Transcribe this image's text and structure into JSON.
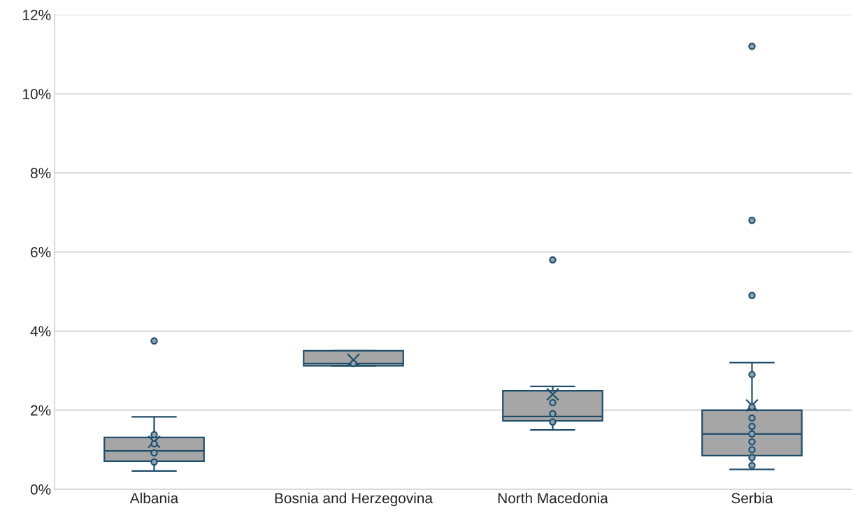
{
  "chart_data": {
    "type": "box",
    "categories": [
      "Albania",
      "Bosnia and Herzegovina",
      "North Macedonia",
      "Serbia"
    ],
    "color": "#a6a6a6",
    "boxes": [
      {
        "low": 0.46,
        "q1": 0.71,
        "median": 0.97,
        "q3": 1.31,
        "high": 1.83,
        "mean": 1.2,
        "outliers": [
          3.75
        ]
      },
      {
        "low": 3.12,
        "q1": 3.12,
        "median": 3.18,
        "q3": 3.5,
        "high": 3.5,
        "mean": 3.27
      },
      {
        "low": 1.5,
        "q1": 1.73,
        "median": 1.84,
        "q3": 2.49,
        "high": 2.6,
        "mean": 2.4,
        "outliers": [
          5.8
        ]
      },
      {
        "low": 0.5,
        "q1": 0.85,
        "median": 1.4,
        "q3": 2.0,
        "high": 3.2,
        "mean": 2.12,
        "outliers": [
          4.9,
          6.8,
          11.2
        ]
      }
    ],
    "series": [
      {
        "type": "scatter",
        "color": "#8fa3b3",
        "x": [
          "Albania",
          "Albania",
          "Albania",
          "Albania",
          "Bosnia and Herzegovina",
          "North Macedonia",
          "North Macedonia",
          "North Macedonia",
          "Serbia",
          "Serbia",
          "Serbia",
          "Serbia",
          "Serbia",
          "Serbia",
          "Serbia",
          "Serbia",
          "Serbia"
        ],
        "values": [
          1.38,
          1.15,
          0.92,
          0.69,
          3.18,
          2.19,
          1.91,
          1.7,
          2.9,
          2.08,
          1.8,
          1.59,
          1.4,
          1.2,
          1.0,
          0.8,
          0.6
        ]
      }
    ],
    "ylim": [
      0,
      12
    ],
    "yticks": [
      {
        "value": 0,
        "label": "0%"
      },
      {
        "value": 2,
        "label": "2%"
      },
      {
        "value": 4,
        "label": "4%"
      },
      {
        "value": 6,
        "label": "6%"
      },
      {
        "value": 8,
        "label": "8%"
      },
      {
        "value": 10,
        "label": "10%"
      },
      {
        "value": 12,
        "label": "12%"
      }
    ],
    "grid": "y"
  }
}
